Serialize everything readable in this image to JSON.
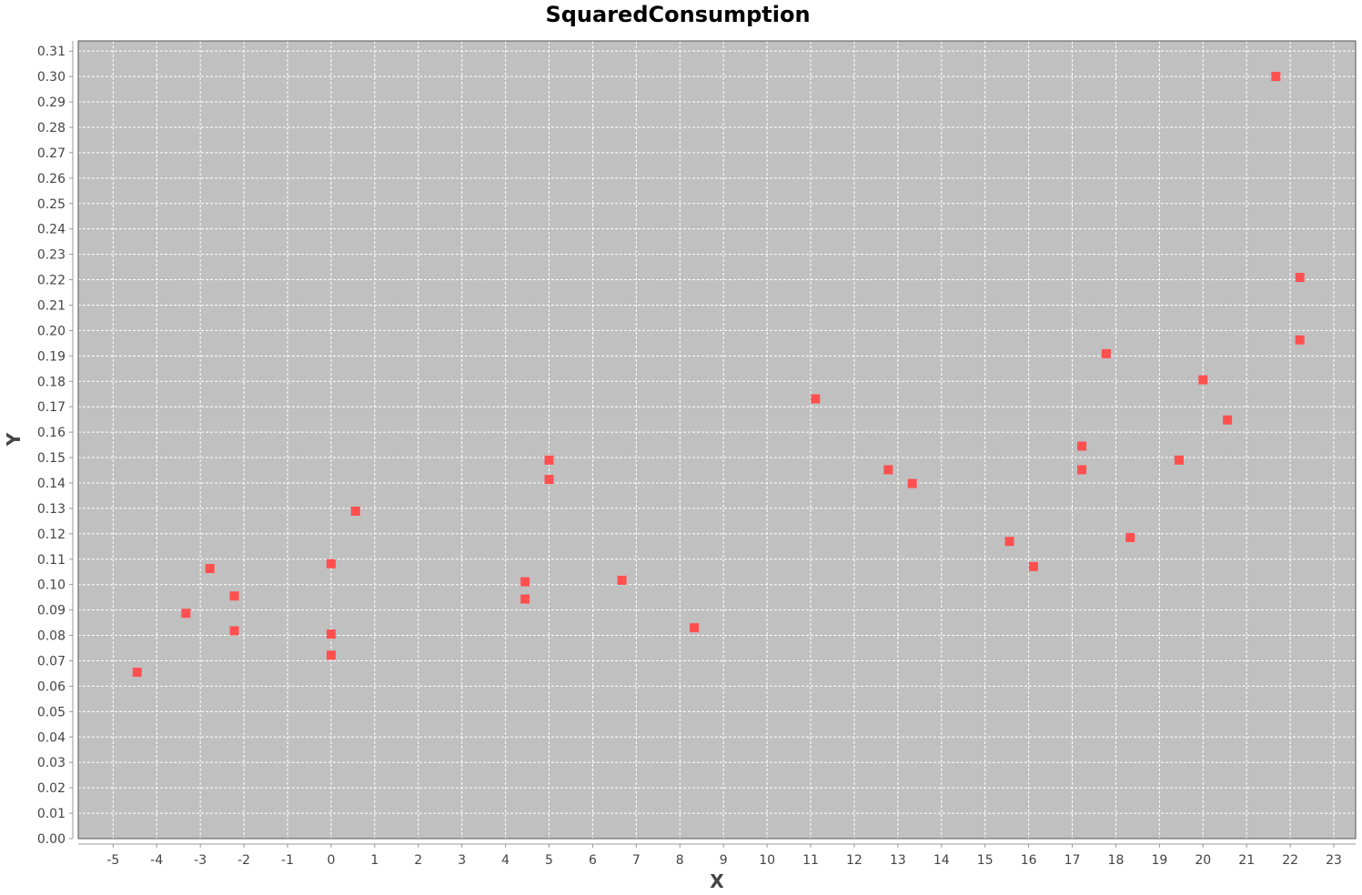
{
  "chart_data": {
    "type": "scatter",
    "title": "SquaredConsumption",
    "xlabel": "X",
    "ylabel": "Y",
    "xlim": [
      -5.8,
      23.5
    ],
    "ylim": [
      0.0,
      0.314
    ],
    "x_ticks": [
      -5,
      -4,
      -3,
      -2,
      -1,
      0,
      1,
      2,
      3,
      4,
      5,
      6,
      7,
      8,
      9,
      10,
      11,
      12,
      13,
      14,
      15,
      16,
      17,
      18,
      19,
      20,
      21,
      22,
      23
    ],
    "y_ticks": [
      "0.00",
      "0.01",
      "0.02",
      "0.03",
      "0.04",
      "0.05",
      "0.06",
      "0.07",
      "0.08",
      "0.09",
      "0.10",
      "0.11",
      "0.12",
      "0.13",
      "0.14",
      "0.15",
      "0.16",
      "0.17",
      "0.18",
      "0.19",
      "0.20",
      "0.21",
      "0.22",
      "0.23",
      "0.24",
      "0.25",
      "0.26",
      "0.27",
      "0.28",
      "0.29",
      "0.30",
      "0.31"
    ],
    "grid": true,
    "legend": "none",
    "colors": {
      "plot_background": "#c0c0c0",
      "grid": "#ffffff",
      "marker": "#ff4f4f"
    },
    "series": [
      {
        "points": [
          [
            -4.45,
            0.0655
          ],
          [
            -3.33,
            0.0887
          ],
          [
            -2.78,
            0.1063
          ],
          [
            -2.22,
            0.0955
          ],
          [
            -2.22,
            0.0818
          ],
          [
            0.0,
            0.1082
          ],
          [
            0.0,
            0.0805
          ],
          [
            0.0,
            0.0722
          ],
          [
            0.56,
            0.1289
          ],
          [
            4.45,
            0.1011
          ],
          [
            4.45,
            0.0943
          ],
          [
            5.0,
            0.149
          ],
          [
            5.0,
            0.1414
          ],
          [
            6.67,
            0.1017
          ],
          [
            8.33,
            0.083
          ],
          [
            11.11,
            0.1731
          ],
          [
            12.78,
            0.1452
          ],
          [
            13.33,
            0.1398
          ],
          [
            15.56,
            0.117
          ],
          [
            16.11,
            0.1071
          ],
          [
            17.22,
            0.1545
          ],
          [
            17.22,
            0.1452
          ],
          [
            17.78,
            0.1909
          ],
          [
            18.33,
            0.1185
          ],
          [
            19.45,
            0.149
          ],
          [
            20.0,
            0.1806
          ],
          [
            20.56,
            0.1648
          ],
          [
            21.67,
            0.3
          ],
          [
            22.22,
            0.2209
          ],
          [
            22.22,
            0.1963
          ]
        ]
      }
    ]
  }
}
